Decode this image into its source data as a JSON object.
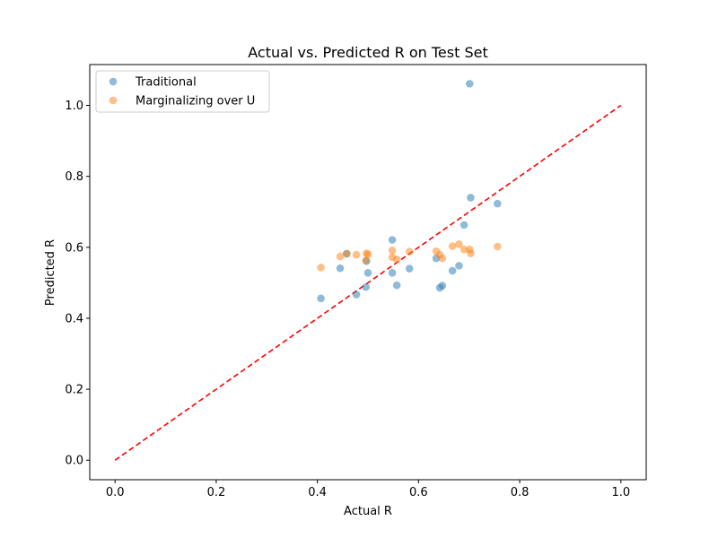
{
  "chart_data": {
    "type": "scatter",
    "title": "Actual vs. Predicted R on Test Set",
    "xlabel": "Actual R",
    "ylabel": "Predicted R",
    "xlim": [
      -0.05,
      1.05
    ],
    "ylim": [
      -0.055,
      1.115
    ],
    "x_ticks": [
      0.0,
      0.2,
      0.4,
      0.6,
      0.8,
      1.0
    ],
    "x_tick_labels": [
      "0.0",
      "0.2",
      "0.4",
      "0.6",
      "0.8",
      "1.0"
    ],
    "y_ticks": [
      0.0,
      0.2,
      0.4,
      0.6,
      0.8,
      1.0
    ],
    "y_tick_labels": [
      "0.0",
      "0.2",
      "0.4",
      "0.6",
      "0.8",
      "1.0"
    ],
    "grid": false,
    "legend_position": "top-left",
    "reference_line": {
      "x": [
        0,
        1
      ],
      "y": [
        0,
        1
      ],
      "color": "#ff0000",
      "style": "dashed"
    },
    "series": [
      {
        "name": "Traditional",
        "color": "#1f77b4",
        "points": [
          [
            0.407,
            0.456
          ],
          [
            0.445,
            0.541
          ],
          [
            0.458,
            0.582
          ],
          [
            0.477,
            0.467
          ],
          [
            0.496,
            0.488
          ],
          [
            0.497,
            0.561
          ],
          [
            0.5,
            0.528
          ],
          [
            0.548,
            0.621
          ],
          [
            0.548,
            0.528
          ],
          [
            0.557,
            0.493
          ],
          [
            0.582,
            0.54
          ],
          [
            0.635,
            0.569
          ],
          [
            0.642,
            0.486
          ],
          [
            0.647,
            0.492
          ],
          [
            0.667,
            0.534
          ],
          [
            0.68,
            0.548
          ],
          [
            0.69,
            0.663
          ],
          [
            0.701,
            1.061
          ],
          [
            0.703,
            0.74
          ],
          [
            0.756,
            0.723
          ]
        ]
      },
      {
        "name": "Marginalizing over U",
        "color": "#ff7f0e",
        "points": [
          [
            0.407,
            0.543
          ],
          [
            0.445,
            0.574
          ],
          [
            0.458,
            0.582
          ],
          [
            0.477,
            0.579
          ],
          [
            0.496,
            0.563
          ],
          [
            0.497,
            0.583
          ],
          [
            0.5,
            0.58
          ],
          [
            0.548,
            0.591
          ],
          [
            0.548,
            0.572
          ],
          [
            0.557,
            0.566
          ],
          [
            0.582,
            0.588
          ],
          [
            0.635,
            0.589
          ],
          [
            0.642,
            0.579
          ],
          [
            0.647,
            0.569
          ],
          [
            0.667,
            0.603
          ],
          [
            0.68,
            0.609
          ],
          [
            0.69,
            0.594
          ],
          [
            0.701,
            0.594
          ],
          [
            0.703,
            0.583
          ],
          [
            0.756,
            0.602
          ]
        ]
      }
    ]
  }
}
